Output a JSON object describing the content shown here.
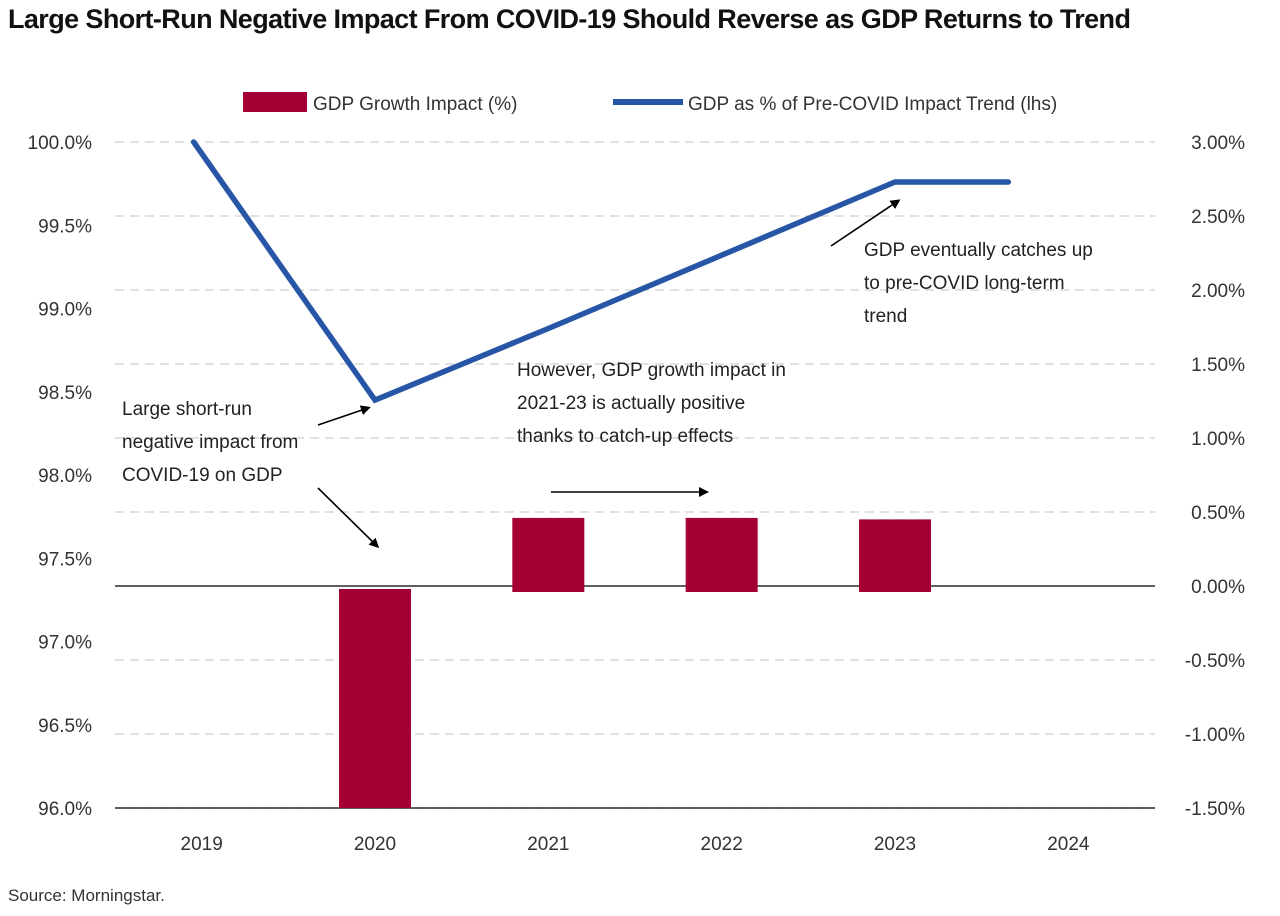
{
  "title": "Large Short-Run Negative Impact From COVID-19 Should Reverse as GDP Returns to Trend",
  "source": "Source: Morningstar.",
  "colors": {
    "bar": "#A50034",
    "line": "#2756A6",
    "grid": "#cfcfcf",
    "axis": "#000000"
  },
  "chart_data": {
    "type": "bar+line",
    "categories": [
      "2019",
      "2020",
      "2021",
      "2022",
      "2023",
      "2024"
    ],
    "legend": [
      "GDP Growth Impact (%)",
      "GDP as % of Pre-COVID Impact Trend (lhs)"
    ],
    "series": [
      {
        "name": "GDP Growth Impact (%)",
        "type": "bar",
        "axis": "right",
        "values": [
          null,
          -1.52,
          0.46,
          0.46,
          0.45,
          null
        ]
      },
      {
        "name": "GDP as % of Pre-COVID Impact Trend (lhs)",
        "type": "line",
        "axis": "left",
        "values": [
          100.0,
          98.45,
          98.88,
          99.32,
          99.76,
          99.76
        ]
      }
    ],
    "left_axis": {
      "min": 96.0,
      "max": 100.0,
      "ticks": [
        "100.0%",
        "99.5%",
        "99.0%",
        "98.5%",
        "98.0%",
        "97.5%",
        "97.0%",
        "96.5%",
        "96.0%"
      ]
    },
    "right_axis": {
      "min": -1.5,
      "max": 3.0,
      "ticks": [
        "3.00%",
        "2.50%",
        "2.00%",
        "1.50%",
        "1.00%",
        "0.50%",
        "0.00%",
        "-0.50%",
        "-1.00%",
        "-1.50%"
      ]
    },
    "annotations": [
      {
        "id": "short-run",
        "lines": [
          "Large short-run",
          "negative impact from",
          "COVID-19 on GDP"
        ]
      },
      {
        "id": "growth-positive",
        "lines": [
          "However, GDP growth impact in",
          "2021-23 is actually positive",
          "thanks to catch-up effects"
        ]
      },
      {
        "id": "catch-up",
        "lines": [
          "GDP eventually catches up",
          "to pre-COVID long-term",
          "trend"
        ]
      }
    ]
  }
}
